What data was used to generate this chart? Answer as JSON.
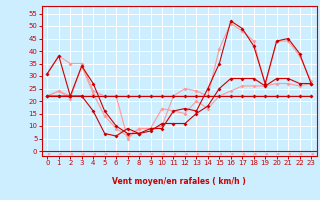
{
  "xlabel": "Vent moyen/en rafales ( km/h )",
  "bg_color": "#cceeff",
  "grid_color": "#ffffff",
  "xlim": [
    -0.5,
    23.5
  ],
  "ylim": [
    -2,
    58
  ],
  "yticks": [
    0,
    5,
    10,
    15,
    20,
    25,
    30,
    35,
    40,
    45,
    50,
    55
  ],
  "xticks": [
    0,
    1,
    2,
    3,
    4,
    5,
    6,
    7,
    8,
    9,
    10,
    11,
    12,
    13,
    14,
    15,
    16,
    17,
    18,
    19,
    20,
    21,
    22,
    23
  ],
  "x": [
    0,
    1,
    2,
    3,
    4,
    5,
    6,
    7,
    8,
    9,
    10,
    11,
    12,
    13,
    14,
    15,
    16,
    17,
    18,
    19,
    20,
    21,
    22,
    23
  ],
  "dark1": [
    22,
    22,
    22,
    22,
    16,
    7,
    6,
    9,
    7,
    8,
    11,
    11,
    11,
    15,
    18,
    25,
    29,
    29,
    29,
    26,
    29,
    29,
    27,
    27
  ],
  "dark2": [
    22,
    22,
    22,
    22,
    22,
    22,
    22,
    22,
    22,
    22,
    22,
    22,
    22,
    22,
    22,
    22,
    22,
    22,
    22,
    22,
    22,
    22,
    22,
    22
  ],
  "dark3": [
    31,
    38,
    22,
    34,
    27,
    16,
    10,
    7,
    7,
    9,
    9,
    16,
    17,
    16,
    25,
    35,
    52,
    49,
    42,
    27,
    44,
    45,
    39,
    27
  ],
  "light1": [
    22,
    24,
    21,
    34,
    23,
    14,
    9,
    6,
    9,
    9,
    17,
    16,
    15,
    20,
    17,
    22,
    24,
    26,
    26,
    26,
    27,
    27,
    26,
    27
  ],
  "light2": [
    22,
    24,
    22,
    22,
    22,
    22,
    22,
    22,
    22,
    22,
    22,
    22,
    22,
    22,
    22,
    22,
    22,
    22,
    22,
    22,
    22,
    22,
    22,
    22
  ],
  "light3": [
    31,
    38,
    35,
    35,
    24,
    22,
    22,
    5,
    9,
    9,
    10,
    22,
    25,
    24,
    22,
    41,
    51,
    48,
    44,
    26,
    44,
    44,
    38,
    28
  ],
  "color_dark": "#cc0000",
  "color_light": "#ff9999",
  "markersize": 2.0,
  "linewidth": 0.8
}
